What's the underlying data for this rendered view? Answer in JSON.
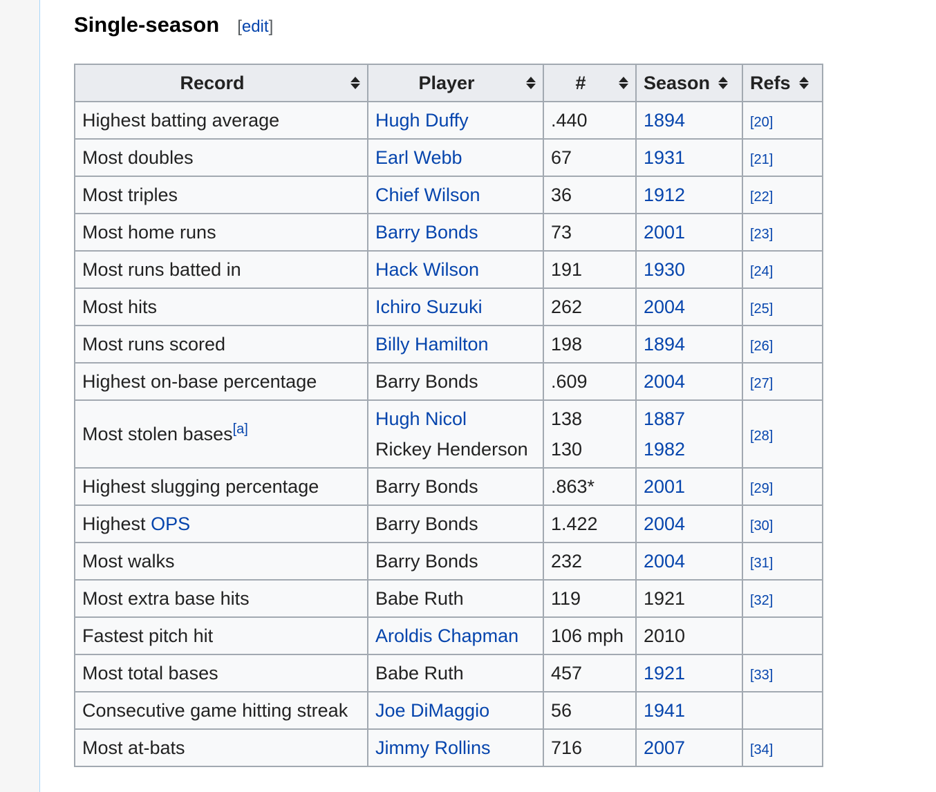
{
  "section": {
    "title": "Single-season",
    "edit_open": "[",
    "edit_label": "edit",
    "edit_close": "]"
  },
  "colors": {
    "link": "#0645ad",
    "header_bg": "#eaecf0",
    "cell_bg": "#f8f9fa",
    "border": "#a2a9b1",
    "sidebar_border": "#a7d7f9"
  },
  "table": {
    "headers": [
      "Record",
      "Player",
      "#",
      "Season",
      "Refs"
    ],
    "rows": [
      {
        "record": "Highest batting average",
        "player": "Hugh Duffy",
        "value": ".440",
        "season": "1894",
        "ref": "[20]"
      },
      {
        "record": "Most doubles",
        "player": "Earl Webb",
        "value": "67",
        "season": "1931",
        "ref": "[21]"
      },
      {
        "record": "Most triples",
        "player": "Chief Wilson",
        "value": "36",
        "season": "1912",
        "ref": "[22]"
      },
      {
        "record": "Most home runs",
        "player": "Barry Bonds",
        "value": "73",
        "season": "2001",
        "ref": "[23]"
      },
      {
        "record": "Most runs batted in",
        "player": "Hack Wilson",
        "value": "191",
        "season": "1930",
        "ref": "[24]"
      },
      {
        "record": "Most hits",
        "player": "Ichiro Suzuki",
        "value": "262",
        "season": "2004",
        "ref": "[25]"
      },
      {
        "record": "Most runs scored",
        "player": "Billy Hamilton",
        "value": "198",
        "season": "1894",
        "ref": "[26]"
      },
      {
        "record": "Highest on-base percentage",
        "player": "Barry Bonds",
        "value": ".609",
        "season": "2004",
        "ref": "[27]"
      },
      {
        "record": "Most stolen bases",
        "record_note": "[a]",
        "player": "Hugh Nicol",
        "player2": "Rickey Henderson",
        "value": "138",
        "value2": "130",
        "season": "1887",
        "season2": "1982",
        "ref": "[28]"
      },
      {
        "record": "Highest slugging percentage",
        "player": "Barry Bonds",
        "value": ".863*",
        "season": "2001",
        "ref": "[29]"
      },
      {
        "record_prefix": "Highest ",
        "record_link": "OPS",
        "player": "Barry Bonds",
        "value": "1.422",
        "season": "2004",
        "ref": "[30]"
      },
      {
        "record": "Most walks",
        "player": "Barry Bonds",
        "value": "232",
        "season": "2004",
        "ref": "[31]"
      },
      {
        "record": "Most extra base hits",
        "player": "Babe Ruth",
        "value": "119",
        "season": "1921",
        "ref": "[32]"
      },
      {
        "record": "Fastest pitch hit",
        "player": "Aroldis Chapman",
        "value": "106 mph",
        "season": "2010",
        "ref": ""
      },
      {
        "record": "Most total bases",
        "player": "Babe Ruth",
        "value": "457",
        "season": "1921",
        "ref": "[33]"
      },
      {
        "record": "Consecutive game hitting streak",
        "player": "Joe DiMaggio",
        "value": "56",
        "season": "1941",
        "ref": ""
      },
      {
        "record": "Most at-bats",
        "player": "Jimmy Rollins",
        "value": "716",
        "season": "2007",
        "ref": "[34]"
      }
    ]
  }
}
